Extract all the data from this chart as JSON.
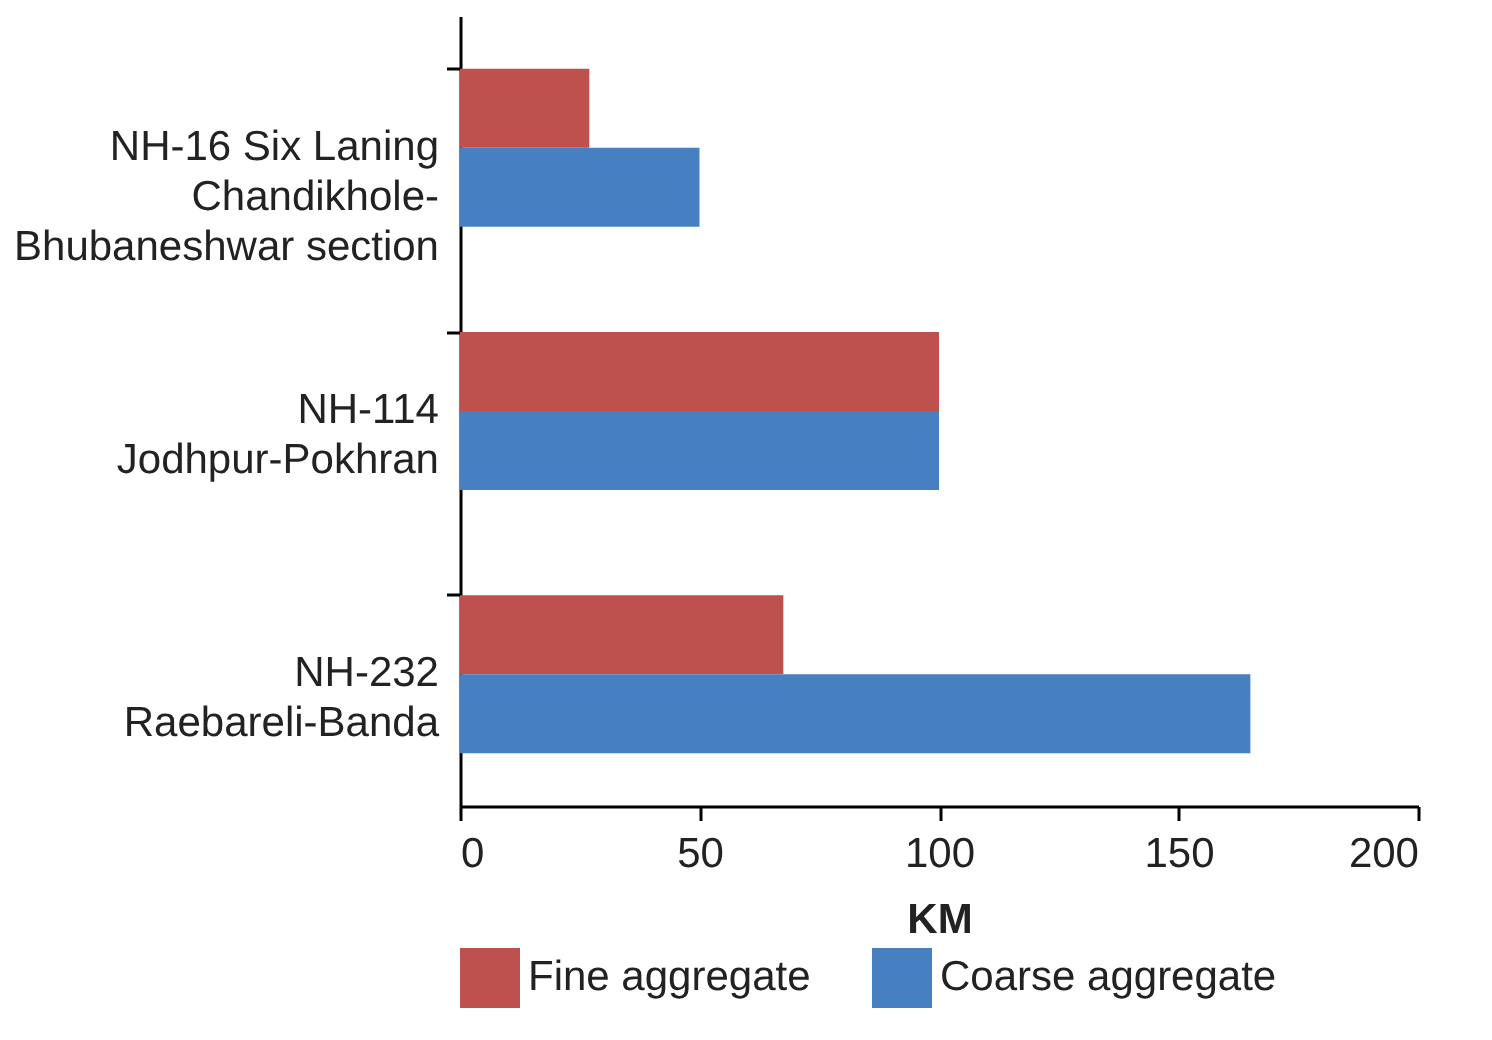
{
  "chart_data": {
    "type": "bar",
    "orientation": "horizontal",
    "xlabel": "KM",
    "categories": [
      "NH-16 Six Laning\nChandikhole-\nBhubaneshwar section",
      "NH-114\nJodhpur-Pokhran",
      "NH-232\nRaebareli-Banda"
    ],
    "series": [
      {
        "name": "Fine aggregate",
        "color": "#be504d",
        "values": [
          27,
          100,
          67.5
        ]
      },
      {
        "name": "Coarse aggregate",
        "color": "#4680c0",
        "values": [
          50,
          100,
          165
        ]
      }
    ],
    "xlim": [
      0,
      200
    ],
    "xticks": [
      0,
      50,
      100,
      150,
      200
    ],
    "legend": "bottom"
  }
}
